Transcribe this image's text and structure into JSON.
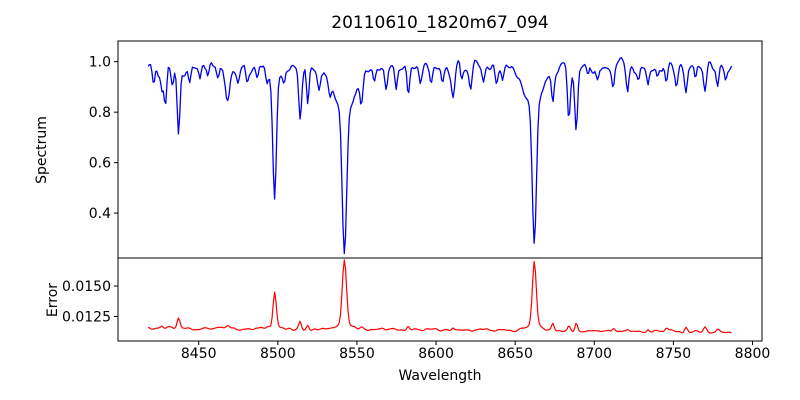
{
  "title": "20110610_1820m67_094",
  "chart_data": {
    "type": "line",
    "title": "20110610_1820m67_094",
    "xlabel": "Wavelength",
    "xlim": [
      8399,
      8806
    ],
    "xticks": [
      8450,
      8500,
      8550,
      8600,
      8650,
      8700,
      8750,
      8800
    ],
    "xtick_labels": [
      "8450",
      "8500",
      "8550",
      "8600",
      "8650",
      "8700",
      "8750",
      "8800"
    ],
    "data_wavelength_range": [
      8418,
      8787
    ],
    "sample_step": 0.8,
    "grid": false,
    "legend": "none",
    "panels": [
      {
        "name": "spectrum",
        "ylabel": "Spectrum",
        "color": "#0000ee",
        "ylim": [
          0.222,
          1.082
        ],
        "yticks": [
          1.0,
          0.8,
          0.6,
          0.4
        ],
        "ytick_labels": [
          "1.0",
          "0.8",
          "0.6",
          "0.4"
        ],
        "continuum": 0.975,
        "noise_amp": 0.045,
        "noise_seed": 20110610,
        "absorption_lines": [
          [
            8421.5,
            0.06,
            0.8
          ],
          [
            8424.5,
            0.04,
            0.7
          ],
          [
            8426.8,
            0.1,
            0.9
          ],
          [
            8429.0,
            0.15,
            0.8
          ],
          [
            8433.5,
            0.05,
            0.7
          ],
          [
            8437.3,
            0.27,
            0.9
          ],
          [
            8444.3,
            0.08,
            0.8
          ],
          [
            8450.9,
            0.05,
            0.7
          ],
          [
            8456.0,
            0.04,
            0.7
          ],
          [
            8462.0,
            0.05,
            0.8
          ],
          [
            8468.3,
            0.13,
            1.4
          ],
          [
            8475.0,
            0.05,
            0.8
          ],
          [
            8480.5,
            0.06,
            0.8
          ],
          [
            8487.0,
            0.04,
            0.7
          ],
          [
            8493.0,
            0.04,
            0.7
          ],
          [
            8498.0,
            0.47,
            1.1
          ],
          [
            8504.0,
            0.04,
            0.7
          ],
          [
            8514.1,
            0.2,
            0.9
          ],
          [
            8518.9,
            0.16,
            0.8
          ],
          [
            8526.0,
            0.06,
            0.8
          ],
          [
            8533.0,
            0.05,
            0.8
          ],
          [
            8542.1,
            0.58,
            1.4
          ],
          [
            8552.8,
            0.09,
            0.9
          ],
          [
            8561.0,
            0.06,
            0.8
          ],
          [
            8568.5,
            0.08,
            0.8
          ],
          [
            8574.8,
            0.08,
            0.7
          ],
          [
            8582.4,
            0.11,
            0.8
          ],
          [
            8590.0,
            0.04,
            0.7
          ],
          [
            8596.9,
            0.07,
            0.8
          ],
          [
            8604.0,
            0.04,
            0.7
          ],
          [
            8610.8,
            0.1,
            0.9
          ],
          [
            8616.0,
            0.05,
            0.7
          ],
          [
            8621.9,
            0.09,
            0.9
          ],
          [
            8630.0,
            0.04,
            0.7
          ],
          [
            8638.0,
            0.05,
            0.8
          ],
          [
            8642.0,
            0.04,
            0.7
          ],
          [
            8662.1,
            0.56,
            1.3
          ],
          [
            8673.8,
            0.11,
            0.8
          ],
          [
            8683.9,
            0.2,
            0.9
          ],
          [
            8688.6,
            0.24,
            0.9
          ],
          [
            8696.0,
            0.05,
            0.7
          ],
          [
            8702.0,
            0.04,
            0.7
          ],
          [
            8712.0,
            0.08,
            0.8
          ],
          [
            8721.0,
            0.09,
            0.8
          ],
          [
            8728.0,
            0.05,
            0.7
          ],
          [
            8734.0,
            0.07,
            0.8
          ],
          [
            8740.0,
            0.04,
            0.7
          ],
          [
            8745.5,
            0.08,
            0.8
          ],
          [
            8752.0,
            0.05,
            0.7
          ],
          [
            8758.0,
            0.09,
            0.8
          ],
          [
            8764.0,
            0.06,
            0.7
          ],
          [
            8770.0,
            0.1,
            0.9
          ],
          [
            8778.0,
            0.07,
            0.8
          ],
          [
            8783.0,
            0.05,
            0.7
          ]
        ],
        "line_wings": [
          [
            8498.0,
            0.05,
            4.0
          ],
          [
            8542.1,
            0.155,
            7.0
          ],
          [
            8662.1,
            0.135,
            6.5
          ]
        ]
      },
      {
        "name": "error",
        "ylabel": "Error",
        "color": "#ff0000",
        "ylim": [
          0.01049,
          0.0173
        ],
        "yticks": [
          0.015,
          0.0125
        ],
        "ytick_labels": [
          "0.0150",
          "0.0125"
        ],
        "baseline_start": 0.01155,
        "baseline_end": 0.01125,
        "noise_amp": 0.0005,
        "noise_seed": 1820094,
        "peaks": [
          [
            8426.8,
            0.0002,
            0.9
          ],
          [
            8437.3,
            0.0009,
            0.9
          ],
          [
            8468.3,
            0.0002,
            1.2
          ],
          [
            8498.0,
            0.0027,
            1.0
          ],
          [
            8514.1,
            0.0006,
            0.8
          ],
          [
            8518.9,
            0.0004,
            0.8
          ],
          [
            8542.1,
            0.0052,
            1.3
          ],
          [
            8552.8,
            0.0002,
            0.8
          ],
          [
            8582.4,
            0.0003,
            0.8
          ],
          [
            8610.8,
            0.0002,
            0.8
          ],
          [
            8662.1,
            0.0053,
            1.2
          ],
          [
            8673.8,
            0.0006,
            0.8
          ],
          [
            8683.9,
            0.0004,
            0.8
          ],
          [
            8688.6,
            0.0007,
            0.8
          ],
          [
            8712.0,
            0.0002,
            0.8
          ],
          [
            8721.0,
            0.0002,
            0.8
          ],
          [
            8734.0,
            0.0002,
            0.7
          ],
          [
            8745.5,
            0.0002,
            0.8
          ],
          [
            8758.0,
            0.0003,
            0.8
          ],
          [
            8770.0,
            0.0004,
            0.9
          ],
          [
            8778.0,
            0.0002,
            0.8
          ]
        ],
        "peak_wings": [
          [
            8498.0,
            0.0002,
            4.0
          ],
          [
            8542.1,
            0.0004,
            5.0
          ],
          [
            8662.1,
            0.0004,
            5.0
          ]
        ]
      }
    ],
    "frame_color": "#000000",
    "background_color": "#ffffff"
  }
}
